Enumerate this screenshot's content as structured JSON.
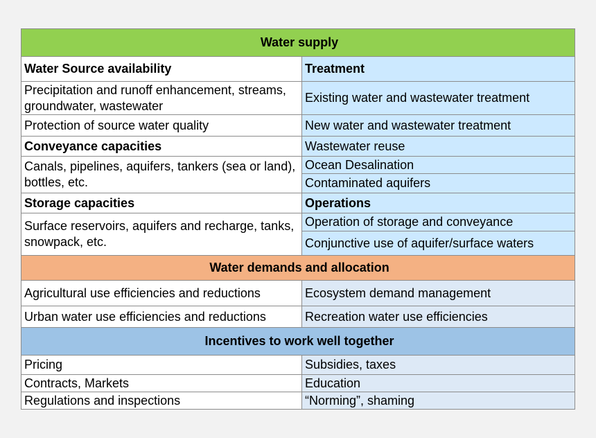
{
  "sections": {
    "supply": {
      "title": "Water supply",
      "col_left_header": "Water Source availability",
      "col_right_header": "Treatment",
      "source_items": [
        "Precipitation and runoff enhancement, streams, groundwater, wastewater",
        "Protection of source water quality"
      ],
      "treatment_items": [
        "Existing water and wastewater treatment",
        "New water and wastewater treatment",
        "Wastewater reuse",
        "Ocean Desalination",
        "Contaminated aquifers"
      ],
      "conveyance_header": "Conveyance capacities",
      "conveyance_item": "Canals, pipelines, aquifers, tankers (sea or land), bottles, etc.",
      "storage_header": "Storage capacities",
      "storage_item": "Surface reservoirs, aquifers and recharge, tanks, snowpack, etc.",
      "operations_header": "Operations",
      "operations_items": [
        "Operation of storage and conveyance",
        "Conjunctive use of aquifer/surface waters"
      ]
    },
    "demands": {
      "title": "Water demands and allocation",
      "rows": [
        [
          "Agricultural use efficiencies and reductions",
          "Ecosystem demand management"
        ],
        [
          "Urban water use efficiencies and reductions",
          "Recreation water use efficiencies"
        ]
      ]
    },
    "incentives": {
      "title": "Incentives to work well together",
      "rows": [
        [
          "Pricing",
          "Subsidies, taxes"
        ],
        [
          "Contracts, Markets",
          "Education"
        ],
        [
          "Regulations and inspections",
          "“Norming”, shaming"
        ]
      ]
    }
  },
  "colors": {
    "supply_band": "#92d050",
    "demands_band": "#f4b183",
    "incentives_band": "#9dc3e6",
    "treatment_column": "#cce9ff",
    "lower_right_column": "#dde9f6",
    "border": "#8c8c8c"
  }
}
